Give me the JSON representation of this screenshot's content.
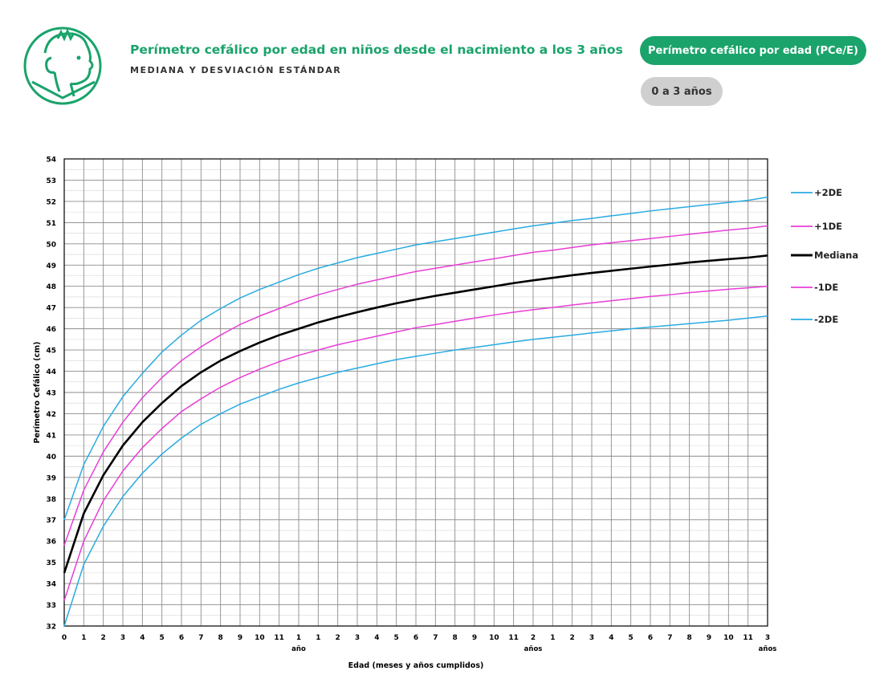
{
  "header": {
    "title": "Perímetro cefálico por edad en niños desde el nacimiento a los 3 años",
    "subtitle": "MEDIANA Y DESVIACIÓN ESTÁNDAR",
    "badge_indicator": "Perímetro cefálico por edad (PCe/E)",
    "badge_range": "0 a 3 años",
    "logo_icon": "child-face-icon",
    "accent_color": "#1aa36b"
  },
  "chart_data": {
    "type": "line",
    "xlabel": "Edad (meses y años cumplidos)",
    "ylabel": "Perímetro Cefálico (cm)",
    "ylim": [
      32,
      54
    ],
    "xlim": [
      0,
      36
    ],
    "x_tick_labels": [
      "0",
      "1",
      "2",
      "3",
      "4",
      "5",
      "6",
      "7",
      "8",
      "9",
      "10",
      "11",
      "1",
      "1",
      "2",
      "3",
      "4",
      "5",
      "6",
      "7",
      "8",
      "9",
      "10",
      "11",
      "2",
      "1",
      "2",
      "3",
      "4",
      "5",
      "6",
      "7",
      "8",
      "9",
      "10",
      "11",
      "3"
    ],
    "x_year_labels": [
      {
        "x": 12,
        "label": "año"
      },
      {
        "x": 24,
        "label": "años"
      },
      {
        "x": 36,
        "label": "años"
      }
    ],
    "grid": true,
    "legend_position": "right",
    "x": [
      0,
      1,
      2,
      3,
      4,
      5,
      6,
      7,
      8,
      9,
      10,
      11,
      12,
      13,
      14,
      15,
      16,
      17,
      18,
      19,
      20,
      21,
      22,
      23,
      24,
      25,
      26,
      27,
      28,
      29,
      30,
      31,
      32,
      33,
      34,
      35,
      36
    ],
    "series": [
      {
        "name": "+2DE",
        "color": "#29abe2",
        "width": 1.5,
        "values": [
          37.0,
          39.6,
          41.4,
          42.8,
          43.9,
          44.9,
          45.7,
          46.4,
          46.95,
          47.45,
          47.85,
          48.2,
          48.55,
          48.85,
          49.1,
          49.35,
          49.55,
          49.75,
          49.95,
          50.1,
          50.25,
          50.4,
          50.55,
          50.7,
          50.85,
          50.97,
          51.1,
          51.2,
          51.32,
          51.43,
          51.55,
          51.65,
          51.75,
          51.85,
          51.95,
          52.05,
          52.2
        ]
      },
      {
        "name": "+1DE",
        "color": "#e83ed6",
        "width": 1.5,
        "values": [
          35.8,
          38.4,
          40.2,
          41.6,
          42.75,
          43.7,
          44.5,
          45.15,
          45.7,
          46.2,
          46.6,
          46.95,
          47.3,
          47.6,
          47.85,
          48.1,
          48.3,
          48.5,
          48.7,
          48.85,
          49.0,
          49.15,
          49.3,
          49.45,
          49.6,
          49.7,
          49.83,
          49.95,
          50.05,
          50.15,
          50.25,
          50.35,
          50.45,
          50.55,
          50.65,
          50.73,
          50.85
        ]
      },
      {
        "name": "Mediana",
        "color": "#000000",
        "width": 2.6,
        "values": [
          34.5,
          37.3,
          39.1,
          40.5,
          41.6,
          42.5,
          43.3,
          43.95,
          44.5,
          44.95,
          45.35,
          45.7,
          46.0,
          46.3,
          46.55,
          46.78,
          47.0,
          47.2,
          47.38,
          47.55,
          47.7,
          47.85,
          48.0,
          48.15,
          48.28,
          48.4,
          48.52,
          48.63,
          48.73,
          48.83,
          48.93,
          49.02,
          49.12,
          49.2,
          49.28,
          49.35,
          49.45
        ]
      },
      {
        "name": "-1DE",
        "color": "#e83ed6",
        "width": 1.5,
        "values": [
          33.2,
          36.0,
          37.9,
          39.3,
          40.4,
          41.3,
          42.1,
          42.7,
          43.25,
          43.7,
          44.1,
          44.45,
          44.75,
          45.0,
          45.25,
          45.45,
          45.65,
          45.85,
          46.05,
          46.2,
          46.35,
          46.5,
          46.65,
          46.78,
          46.9,
          47.0,
          47.12,
          47.22,
          47.32,
          47.42,
          47.52,
          47.6,
          47.7,
          47.78,
          47.86,
          47.93,
          48.0
        ]
      },
      {
        "name": "-2DE",
        "color": "#29abe2",
        "width": 1.5,
        "values": [
          32.0,
          34.9,
          36.7,
          38.1,
          39.2,
          40.1,
          40.85,
          41.5,
          42.0,
          42.45,
          42.8,
          43.15,
          43.45,
          43.7,
          43.95,
          44.15,
          44.35,
          44.55,
          44.7,
          44.85,
          45.0,
          45.12,
          45.25,
          45.38,
          45.5,
          45.6,
          45.7,
          45.8,
          45.9,
          46.0,
          46.08,
          46.16,
          46.24,
          46.32,
          46.4,
          46.5,
          46.6
        ]
      }
    ]
  }
}
